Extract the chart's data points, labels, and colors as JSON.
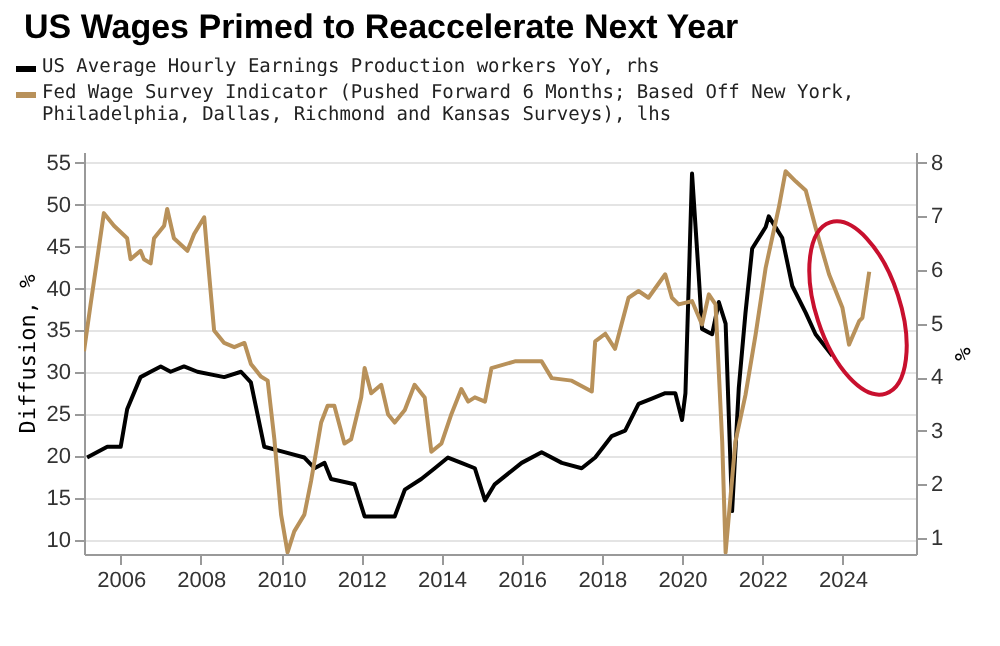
{
  "chart_data": {
    "type": "line",
    "title": "US Wages Primed to Reaccelerate Next Year",
    "ylabel": "Diffusion, %",
    "y2label": "%",
    "legend": "top",
    "grid": "y",
    "xlim": [
      "2005-02",
      "2025-11"
    ],
    "xticks": [
      "2006",
      "2008",
      "2010",
      "2012",
      "2014",
      "2016",
      "2018",
      "2020",
      "2022",
      "2024"
    ],
    "ylim": [
      8.3,
      56.3
    ],
    "yticks": [
      10,
      15,
      20,
      25,
      30,
      35,
      40,
      45,
      50,
      55
    ],
    "y2lim": [
      0.7,
      8.2
    ],
    "y2ticks": [
      1,
      2,
      3,
      4,
      5,
      6,
      7,
      8
    ],
    "series": [
      {
        "name": "US Average Hourly Earnings Production workers YoY, rhs",
        "color": "#000000",
        "axis": "y2",
        "x": [
          "2005-03",
          "2005-09",
          "2006-01",
          "2006-03",
          "2006-07",
          "2006-10",
          "2007-01",
          "2007-04",
          "2007-08",
          "2007-12",
          "2008-08",
          "2009-01",
          "2009-04",
          "2009-08",
          "2010-02",
          "2010-08",
          "2010-11",
          "2011-02",
          "2011-04",
          "2011-11",
          "2012-02",
          "2012-08",
          "2012-11",
          "2013-02",
          "2013-07",
          "2013-11",
          "2014-03",
          "2014-07",
          "2014-11",
          "2015-02",
          "2015-05",
          "2016-01",
          "2016-07",
          "2017-01",
          "2017-07",
          "2017-11",
          "2018-04",
          "2018-08",
          "2018-12",
          "2019-04",
          "2019-08",
          "2019-11",
          "2020-01",
          "2020-02",
          "2020-04",
          "2020-06",
          "2020-07",
          "2020-10",
          "2020-12",
          "2021-02",
          "2021-04",
          "2021-06",
          "2021-08",
          "2021-10",
          "2022-02",
          "2022-03",
          "2022-07",
          "2022-10",
          "2023-02",
          "2023-05",
          "2023-10"
        ],
        "values": [
          2.5,
          2.7,
          2.7,
          3.4,
          4.0,
          4.1,
          4.2,
          4.1,
          4.2,
          4.1,
          4.0,
          4.1,
          3.9,
          2.7,
          2.6,
          2.5,
          2.3,
          2.4,
          2.1,
          2.0,
          1.4,
          1.4,
          1.4,
          1.9,
          2.1,
          2.3,
          2.5,
          2.4,
          2.3,
          1.7,
          2.0,
          2.4,
          2.6,
          2.4,
          2.3,
          2.5,
          2.9,
          3.0,
          3.5,
          3.6,
          3.7,
          3.7,
          3.2,
          3.7,
          7.8,
          5.9,
          4.9,
          4.8,
          5.4,
          5.0,
          1.5,
          3.8,
          5.2,
          6.4,
          6.8,
          7.0,
          6.6,
          5.7,
          5.2,
          4.8,
          4.4
        ]
      },
      {
        "name": "Fed Wage Survey Indicator (Pushed Forward 6 Months; Based Off New York, Philadelphia, Dallas, Richmond and Kansas Surveys), lhs",
        "color": "#b8915a",
        "x": [
          "2005-02",
          "2005-04",
          "2005-08",
          "2005-11",
          "2006-03",
          "2006-04",
          "2006-07",
          "2006-08",
          "2006-10",
          "2006-11",
          "2007-02",
          "2007-03",
          "2007-05",
          "2007-09",
          "2007-11",
          "2008-02",
          "2008-03",
          "2008-05",
          "2008-08",
          "2008-11",
          "2009-02",
          "2009-04",
          "2009-07",
          "2009-09",
          "2009-11",
          "2010-01",
          "2010-03",
          "2010-05",
          "2010-08",
          "2010-10",
          "2011-01",
          "2011-03",
          "2011-05",
          "2011-08",
          "2011-10",
          "2012-01",
          "2012-02",
          "2012-04",
          "2012-07",
          "2012-09",
          "2012-11",
          "2013-02",
          "2013-05",
          "2013-08",
          "2013-10",
          "2014-01",
          "2014-04",
          "2014-07",
          "2014-09",
          "2014-11",
          "2015-02",
          "2015-04",
          "2015-11",
          "2016-07",
          "2016-10",
          "2017-04",
          "2017-10",
          "2017-11",
          "2018-02",
          "2018-05",
          "2018-09",
          "2018-12",
          "2019-03",
          "2019-08",
          "2019-10",
          "2019-12",
          "2020-04",
          "2020-07",
          "2020-09",
          "2020-11",
          "2021-01",
          "2021-02",
          "2021-05",
          "2021-08",
          "2021-11",
          "2022-02",
          "2022-06",
          "2022-08",
          "2022-11",
          "2023-02",
          "2023-05",
          "2023-09",
          "2024-01",
          "2024-03",
          "2024-06",
          "2024-07",
          "2024-09"
        ],
        "values": [
          32.5,
          38,
          49,
          47.5,
          46,
          43.5,
          44.5,
          43.5,
          43,
          46,
          47.5,
          49.5,
          46,
          44.5,
          46.5,
          48.5,
          44,
          35,
          33.5,
          33,
          33.5,
          31,
          29.5,
          29,
          22,
          13,
          8.5,
          11,
          13,
          17,
          24,
          26,
          26,
          21.5,
          22,
          27,
          30.5,
          27.5,
          28.5,
          25,
          24,
          25.5,
          28.5,
          27,
          20.5,
          21.5,
          25,
          28,
          26.5,
          27,
          26.5,
          30.5,
          31.3,
          31.3,
          29.3,
          29,
          27.7,
          33.7,
          34.6,
          32.8,
          38.9,
          39.7,
          38.9,
          41.7,
          38.9,
          38.1,
          38.5,
          35.7,
          39.3,
          38.1,
          21.7,
          8.5,
          21.7,
          27.3,
          34.5,
          42.5,
          49.7,
          54,
          52.8,
          51.7,
          47.3,
          41.7,
          37.7,
          33.3,
          36.1,
          36.5,
          42
        ]
      }
    ]
  }
}
